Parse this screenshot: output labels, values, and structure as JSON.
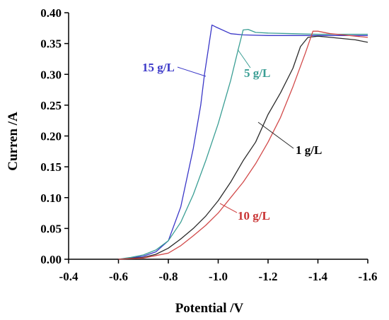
{
  "chart_data": {
    "type": "line",
    "xlabel": "Potential /V",
    "ylabel": "Curren /A",
    "xlim": [
      -0.4,
      -1.6
    ],
    "ylim": [
      0.0,
      0.4
    ],
    "x_ticks": [
      "-0.4",
      "-0.6",
      "-0.8",
      "-1.0",
      "-1.2",
      "-1.4",
      "-1.6"
    ],
    "y_ticks": [
      "0.00",
      "0.05",
      "0.10",
      "0.15",
      "0.20",
      "0.25",
      "0.30",
      "0.35",
      "0.40"
    ],
    "grid": false,
    "legend": "inline labels",
    "series": [
      {
        "name": "15 g/L",
        "color": "#3a37c8",
        "x": [
          -0.6,
          -0.65,
          -0.7,
          -0.75,
          -0.8,
          -0.85,
          -0.9,
          -0.93,
          -0.945,
          -0.96,
          -0.975,
          -0.99,
          -1.05,
          -1.1,
          -1.2,
          -1.3,
          -1.4,
          -1.5,
          -1.6
        ],
        "y": [
          0.0,
          0.002,
          0.005,
          0.012,
          0.03,
          0.085,
          0.18,
          0.25,
          0.3,
          0.34,
          0.38,
          0.377,
          0.366,
          0.364,
          0.363,
          0.363,
          0.363,
          0.363,
          0.363
        ]
      },
      {
        "name": "5 g/L",
        "color": "#3a9e94",
        "x": [
          -0.6,
          -0.65,
          -0.7,
          -0.75,
          -0.8,
          -0.85,
          -0.9,
          -0.95,
          -1.0,
          -1.05,
          -1.08,
          -1.1,
          -1.12,
          -1.15,
          -1.2,
          -1.3,
          -1.4,
          -1.5,
          -1.6
        ],
        "y": [
          0.0,
          0.003,
          0.007,
          0.015,
          0.03,
          0.06,
          0.105,
          0.16,
          0.22,
          0.29,
          0.34,
          0.372,
          0.373,
          0.368,
          0.367,
          0.366,
          0.365,
          0.365,
          0.365
        ]
      },
      {
        "name": "1 g/L",
        "color": "#2b2b2b",
        "x": [
          -0.6,
          -0.7,
          -0.75,
          -0.8,
          -0.85,
          -0.9,
          -0.95,
          -1.0,
          -1.05,
          -1.1,
          -1.15,
          -1.2,
          -1.25,
          -1.3,
          -1.33,
          -1.36,
          -1.4,
          -1.45,
          -1.5,
          -1.55,
          -1.6
        ],
        "y": [
          0.0,
          0.003,
          0.008,
          0.018,
          0.033,
          0.05,
          0.07,
          0.095,
          0.125,
          0.16,
          0.19,
          0.235,
          0.27,
          0.31,
          0.345,
          0.36,
          0.362,
          0.36,
          0.358,
          0.356,
          0.352
        ]
      },
      {
        "name": "10 g/L",
        "color": "#d24a4a",
        "x": [
          -0.6,
          -0.7,
          -0.8,
          -0.85,
          -0.9,
          -0.95,
          -1.0,
          -1.05,
          -1.1,
          -1.15,
          -1.2,
          -1.25,
          -1.3,
          -1.35,
          -1.38,
          -1.4,
          -1.45,
          -1.5,
          -1.55,
          -1.6
        ],
        "y": [
          0.0,
          0.002,
          0.01,
          0.022,
          0.038,
          0.055,
          0.075,
          0.1,
          0.125,
          0.155,
          0.19,
          0.23,
          0.28,
          0.335,
          0.37,
          0.37,
          0.366,
          0.364,
          0.362,
          0.36
        ]
      }
    ],
    "annotations": [
      "15 g/L",
      "5 g/L",
      "1 g/L",
      "10 g/L"
    ]
  }
}
